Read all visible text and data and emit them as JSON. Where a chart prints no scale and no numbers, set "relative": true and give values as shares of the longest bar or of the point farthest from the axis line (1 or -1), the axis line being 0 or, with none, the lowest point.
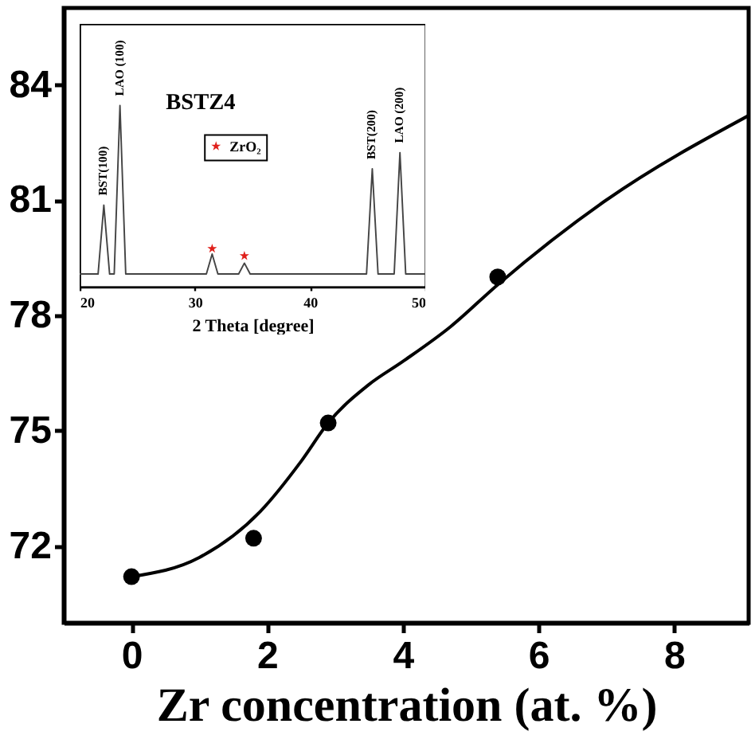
{
  "chart_data": [
    {
      "type": "scatter",
      "xlabel": "Zr concentration  (at. %)",
      "xlim": [
        -1,
        9.1
      ],
      "xticks": [
        0,
        2,
        4,
        6,
        8
      ],
      "ylim": [
        70,
        86
      ],
      "yticks": [
        72,
        75,
        78,
        81,
        84
      ],
      "series": [
        {
          "color": "#000000",
          "marker": "circle",
          "x": [
            0,
            1.8,
            2.9,
            5.4
          ],
          "values": [
            71.2,
            72.2,
            75.2,
            79.0
          ]
        },
        {
          "type": "line",
          "color": "#000000",
          "x": [
            0,
            1,
            1.9,
            2.5,
            2.9,
            3.5,
            4,
            4.7,
            5.4,
            7,
            9.1
          ],
          "values": [
            71.2,
            71.7,
            72.9,
            74.2,
            75.2,
            76.2,
            76.8,
            77.7,
            78.8,
            81.0,
            83.2
          ]
        }
      ]
    },
    {
      "type": "line",
      "relative": true,
      "xlabel": "2 Theta [degree]",
      "xlim": [
        20,
        50
      ],
      "xticks": [
        20,
        30,
        40,
        50
      ],
      "tick_labels": "x",
      "legend": "top",
      "annotations": [
        "BSTZ4",
        {
          "text": "BST(100)",
          "x": 22.1,
          "y": 0.45
        },
        {
          "text": "LAO (100)",
          "x": 23.5,
          "y": 1
        },
        {
          "text": "BST(200)",
          "x": 45.4,
          "y": 0.65
        },
        {
          "text": "LAO (200)",
          "x": 47.8,
          "y": 0.74
        }
      ],
      "series": [
        {
          "color": "#444444",
          "x": [
            20,
            21.6,
            22.1,
            22.6,
            23.0,
            23.5,
            24.0,
            31.0,
            31.5,
            32.0,
            33.8,
            34.3,
            34.8,
            44.9,
            45.4,
            45.9,
            47.3,
            47.8,
            48.3,
            50
          ],
          "values": [
            0.07,
            0.07,
            0.45,
            0.07,
            0.07,
            1,
            0.07,
            0.07,
            0.18,
            0.07,
            0.07,
            0.13,
            0.07,
            0.07,
            0.65,
            0.07,
            0.07,
            0.74,
            0.07,
            0.07
          ]
        },
        {
          "type": "scatter",
          "name": "ZrO₂",
          "color": "#e0201b",
          "marker": "star",
          "x": [
            31.5,
            34.3
          ],
          "values": [
            0.21,
            0.17
          ]
        }
      ]
    }
  ]
}
